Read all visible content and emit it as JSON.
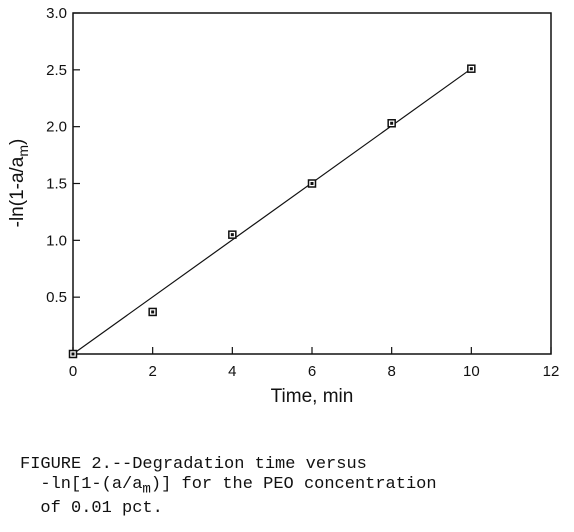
{
  "chart_data": {
    "type": "scatter",
    "xlabel": "Time, min",
    "ylabel_main": "-ln(1-a/a",
    "ylabel_sub": "m",
    "ylabel_close": ")",
    "xlim": [
      0,
      12
    ],
    "ylim": [
      0,
      3.0
    ],
    "x_ticks": [
      0,
      2,
      4,
      6,
      8,
      10,
      12
    ],
    "y_ticks": [
      0.5,
      1.0,
      1.5,
      2.0,
      2.5,
      3.0
    ],
    "x_tick_labels": [
      "0",
      "2",
      "4",
      "6",
      "8",
      "10",
      "12"
    ],
    "y_tick_labels": [
      "0.5",
      "1.0",
      "1.5",
      "2.0",
      "2.5",
      "3.0"
    ],
    "points": [
      {
        "x": 0,
        "y": 0.0
      },
      {
        "x": 2,
        "y": 0.37
      },
      {
        "x": 4,
        "y": 1.05
      },
      {
        "x": 6,
        "y": 1.5
      },
      {
        "x": 8,
        "y": 2.03
      },
      {
        "x": 10,
        "y": 2.51
      }
    ],
    "fit_line": {
      "x": [
        0,
        10
      ],
      "y": [
        0.0,
        2.51
      ]
    },
    "grid": false
  },
  "caption": {
    "line1": "FIGURE 2.--Degradation time versus",
    "line2_pre": "  -ln[1-(a/a",
    "line2_sub": "m",
    "line2_post": ")] for the PEO concentration",
    "line3": "  of 0.01 pct."
  }
}
